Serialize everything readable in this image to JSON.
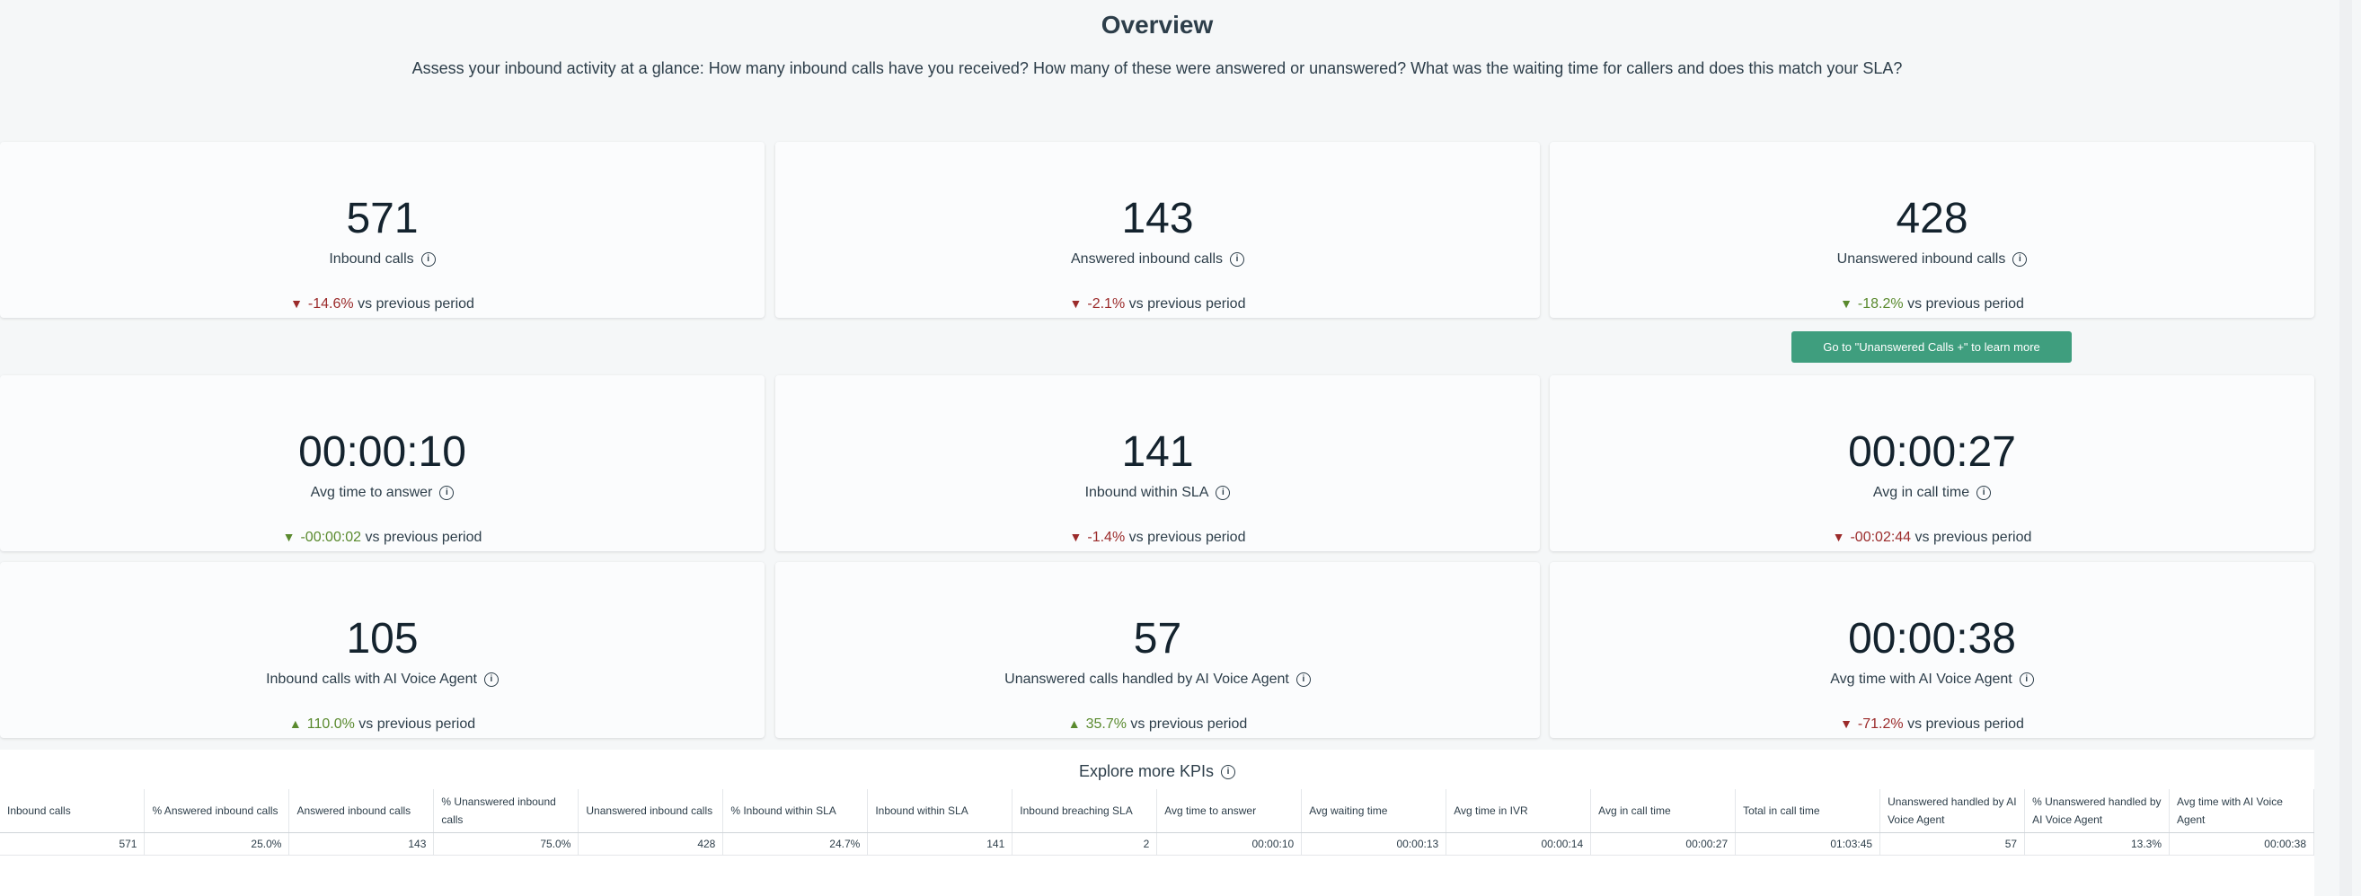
{
  "header": {
    "title": "Overview",
    "subtitle": "Assess your inbound activity at a glance: How many inbound calls have you received? How many of these were answered or unanswered? What was the waiting time for callers and does this match your SLA?"
  },
  "kpis": [
    {
      "value": "571",
      "label": "Inbound calls",
      "arrow": "▼",
      "delta": "-14.6%",
      "suffix": "vs previous period"
    },
    {
      "value": "143",
      "label": "Answered inbound calls",
      "arrow": "▼",
      "delta": "-2.1%",
      "suffix": "vs previous period"
    },
    {
      "value": "428",
      "label": "Unanswered inbound calls",
      "arrow": "▼",
      "delta": "-18.2%",
      "suffix": "vs previous period"
    },
    {
      "value": "00:00:10",
      "label": "Avg time to answer",
      "arrow": "▼",
      "delta": "-00:00:02",
      "suffix": "vs previous period"
    },
    {
      "value": "141",
      "label": "Inbound within SLA",
      "arrow": "▼",
      "delta": "-1.4%",
      "suffix": "vs previous period"
    },
    {
      "value": "00:00:27",
      "label": "Avg in call time",
      "arrow": "▼",
      "delta": "-00:02:44",
      "suffix": "vs previous period"
    },
    {
      "value": "105",
      "label": "Inbound calls with AI Voice Agent",
      "arrow": "▲",
      "delta": "110.0%",
      "suffix": "vs previous period"
    },
    {
      "value": "57",
      "label": "Unanswered calls handled by AI Voice Agent",
      "arrow": "▲",
      "delta": "35.7%",
      "suffix": "vs previous period"
    },
    {
      "value": "00:00:38",
      "label": "Avg time with AI Voice Agent",
      "arrow": "▼",
      "delta": "-71.2%",
      "suffix": "vs previous period"
    }
  ],
  "cta_button": "Go to \"Unanswered Calls +\" to learn more",
  "explore": {
    "title": "Explore more KPIs",
    "columns": [
      "Inbound calls",
      "% Answered inbound calls",
      "Answered inbound calls",
      "% Unanswered inbound calls",
      "Unanswered inbound calls",
      "% Inbound within SLA",
      "Inbound within SLA",
      "Inbound breaching SLA",
      "Avg time to answer",
      "Avg waiting time",
      "Avg time in IVR",
      "Avg in call time",
      "Total in call time",
      "Unanswered handled by AI Voice Agent",
      "% Unanswered handled by AI Voice Agent",
      "Avg time with AI Voice Agent"
    ],
    "row": [
      "571",
      "25.0%",
      "143",
      "75.0%",
      "428",
      "24.7%",
      "141",
      "2",
      "00:00:10",
      "00:00:13",
      "00:00:14",
      "00:00:27",
      "01:03:45",
      "57",
      "13.3%",
      "00:00:38"
    ]
  },
  "colors": {
    "negative_bad": "#9b2b2b",
    "positive_good": "#5a8a2e",
    "button": "#3f9e7e"
  },
  "icons": {
    "info": "info-icon",
    "down": "triangle-down-icon",
    "up": "triangle-up-icon"
  }
}
